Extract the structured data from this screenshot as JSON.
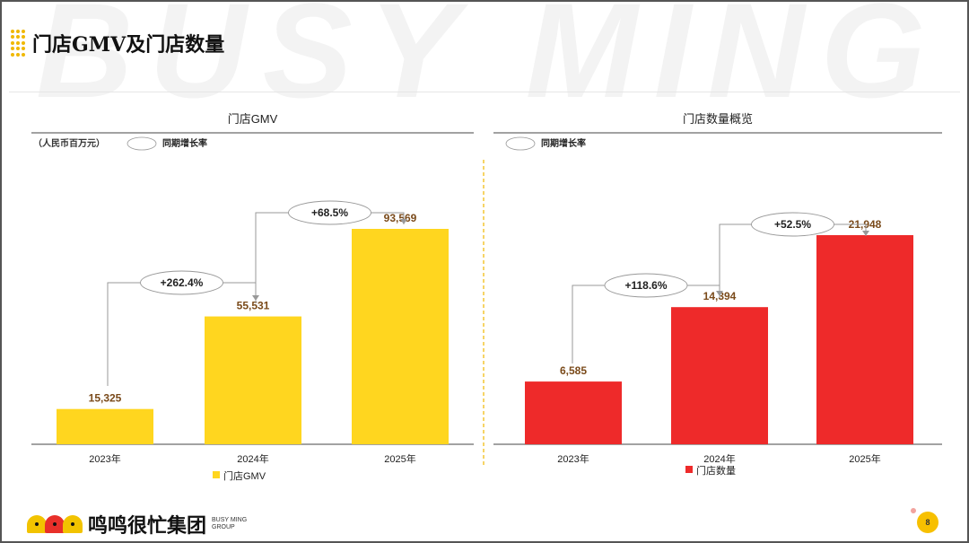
{
  "page": {
    "title": "门店GMV及门店数量",
    "watermark": "BUSY MING",
    "page_number": "8"
  },
  "brand": {
    "name": "鸣鸣很忙集团",
    "sub_line1": "BUSY MING",
    "sub_line2": "GROUP"
  },
  "colors": {
    "gmv_bar": "#FFD61F",
    "store_bar": "#EE2A2A",
    "value_label": "#7a4a1a",
    "accent_dot": "#f0b800"
  },
  "chart_data": [
    {
      "type": "bar",
      "title": "门店GMV",
      "unit_note": "（人民币百万元）",
      "growth_legend": "同期增长率",
      "categories": [
        "2023年",
        "2024年",
        "2025年"
      ],
      "series": [
        {
          "name": "门店GMV",
          "values": [
            15325,
            55531,
            93569
          ]
        }
      ],
      "value_labels": [
        "15,325",
        "55,531",
        "93,569"
      ],
      "growth": [
        {
          "from": "2023年",
          "to": "2024年",
          "label": "+262.4%"
        },
        {
          "from": "2024年",
          "to": "2025年",
          "label": "+68.5%"
        }
      ],
      "ylim": [
        0,
        100000
      ],
      "grid": false,
      "legend_position": "bottom"
    },
    {
      "type": "bar",
      "title": "门店数量概览",
      "growth_legend": "同期增长率",
      "categories": [
        "2023年",
        "2024年",
        "2025年"
      ],
      "series": [
        {
          "name": "门店数量",
          "values": [
            6585,
            14394,
            21948
          ]
        }
      ],
      "value_labels": [
        "6,585",
        "14,394",
        "21,948"
      ],
      "growth": [
        {
          "from": "2023年",
          "to": "2024年",
          "label": "+118.6%"
        },
        {
          "from": "2024年",
          "to": "2025年",
          "label": "+52.5%"
        }
      ],
      "ylim": [
        0,
        25000
      ],
      "grid": false,
      "legend_position": "bottom"
    }
  ]
}
